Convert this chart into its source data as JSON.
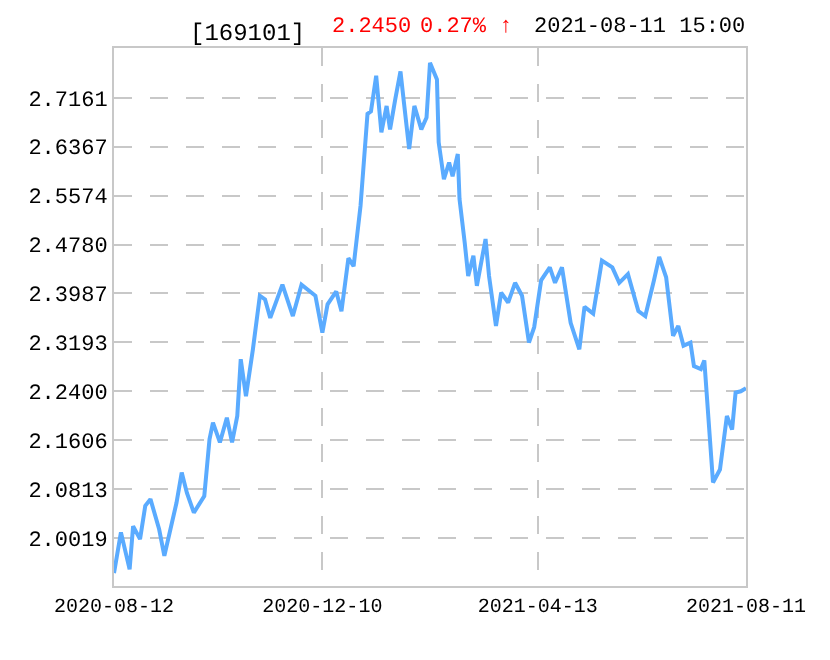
{
  "chart_data": {
    "type": "line",
    "title": "[169101]",
    "annotations": [
      "2.2450",
      "0.27% ↑",
      "2021-08-11 15:00"
    ],
    "x": [
      "2020-08-12",
      "2020-08-16",
      "2020-08-21",
      "2020-08-23",
      "2020-08-27",
      "2020-08-30",
      "2020-09-02",
      "2020-09-07",
      "2020-09-10",
      "2020-09-17",
      "2020-09-20",
      "2020-09-23",
      "2020-09-27",
      "2020-10-03",
      "2020-10-06",
      "2020-10-08",
      "2020-10-12",
      "2020-10-16",
      "2020-10-19",
      "2020-10-22",
      "2020-10-24",
      "2020-10-27",
      "2020-10-31",
      "2020-11-04",
      "2020-11-07",
      "2020-11-10",
      "2020-11-17",
      "2020-11-23",
      "2020-11-28",
      "2020-12-06",
      "2020-12-10",
      "2020-12-13",
      "2020-12-18",
      "2020-12-21",
      "2020-12-25",
      "2020-12-28",
      "2021-01-01",
      "2021-01-05",
      "2021-01-07",
      "2021-01-10",
      "2021-01-13",
      "2021-01-16",
      "2021-01-18",
      "2021-01-21",
      "2021-01-24",
      "2021-01-26",
      "2021-01-29",
      "2021-02-01",
      "2021-02-05",
      "2021-02-08",
      "2021-02-10",
      "2021-02-14",
      "2021-02-15",
      "2021-02-18",
      "2021-02-21",
      "2021-02-23",
      "2021-02-26",
      "2021-02-27",
      "2021-03-02",
      "2021-03-04",
      "2021-03-07",
      "2021-03-09",
      "2021-03-14",
      "2021-03-16",
      "2021-03-20",
      "2021-03-23",
      "2021-03-27",
      "2021-03-31",
      "2021-04-04",
      "2021-04-08",
      "2021-04-11",
      "2021-04-15",
      "2021-04-20",
      "2021-04-23",
      "2021-04-27",
      "2021-05-02",
      "2021-05-07",
      "2021-05-10",
      "2021-05-15",
      "2021-05-20",
      "2021-05-26",
      "2021-05-30",
      "2021-06-04",
      "2021-06-10",
      "2021-06-14",
      "2021-06-19",
      "2021-06-22",
      "2021-06-26",
      "2021-06-30",
      "2021-07-03",
      "2021-07-06",
      "2021-07-10",
      "2021-07-12",
      "2021-07-16",
      "2021-07-18",
      "2021-07-23",
      "2021-07-27",
      "2021-07-31",
      "2021-08-03",
      "2021-08-05",
      "2021-08-08",
      "2021-08-11"
    ],
    "series": [
      {
        "color": "#5aabff",
        "values": [
          1.945,
          2.011,
          1.951,
          2.021,
          2.0,
          2.054,
          2.065,
          2.016,
          1.973,
          2.059,
          2.108,
          2.075,
          2.043,
          2.07,
          2.162,
          2.189,
          2.157,
          2.197,
          2.157,
          2.2,
          2.292,
          2.232,
          2.308,
          2.395,
          2.389,
          2.359,
          2.413,
          2.362,
          2.413,
          2.395,
          2.335,
          2.381,
          2.402,
          2.37,
          2.456,
          2.443,
          2.541,
          2.69,
          2.694,
          2.752,
          2.66,
          2.703,
          2.665,
          2.714,
          2.759,
          2.708,
          2.633,
          2.703,
          2.665,
          2.684,
          2.773,
          2.746,
          2.644,
          2.584,
          2.611,
          2.589,
          2.625,
          2.552,
          2.481,
          2.427,
          2.46,
          2.411,
          2.487,
          2.427,
          2.346,
          2.4,
          2.384,
          2.416,
          2.395,
          2.319,
          2.344,
          2.42,
          2.441,
          2.416,
          2.441,
          2.351,
          2.308,
          2.377,
          2.366,
          2.452,
          2.441,
          2.416,
          2.43,
          2.37,
          2.362,
          2.42,
          2.458,
          2.425,
          2.33,
          2.346,
          2.314,
          2.319,
          2.281,
          2.276,
          2.29,
          2.092,
          2.113,
          2.2,
          2.178,
          2.238,
          2.24,
          2.245
        ]
      }
    ],
    "xlim": [
      "2020-08-12",
      "2021-08-11"
    ],
    "xticks": [
      "2020-08-12",
      "2020-12-10",
      "2021-04-13",
      "2021-08-11"
    ],
    "ylim": [
      1.924,
      2.797
    ],
    "yticks": [
      2.0019,
      2.0813,
      2.1606,
      {
        "value": 2.24,
        "label": "2.2400"
      },
      2.3193,
      2.3987,
      {
        "value": 2.478,
        "label": "2.4780"
      },
      2.5574,
      2.6367,
      2.7161
    ],
    "grid": true,
    "marker": "none",
    "line_style": "solid"
  }
}
